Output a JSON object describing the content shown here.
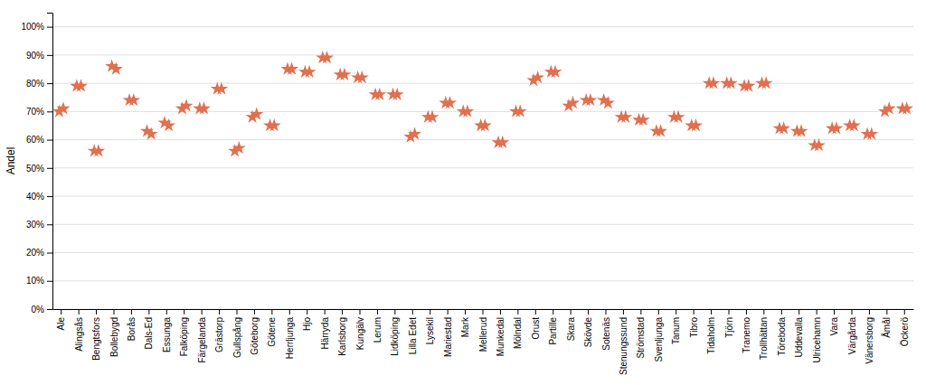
{
  "chart_data": {
    "type": "scatter",
    "ylabel": "Andel",
    "categories": [
      "Ale",
      "Alingsås",
      "Bengtsfors",
      "Bollebygd",
      "Borås",
      "Dals-Ed",
      "Essunga",
      "Falköping",
      "Färgelanda",
      "Grästorp",
      "Gullspång",
      "Göteborg",
      "Götene",
      "Herrljunga",
      "Hjo",
      "Härryda",
      "Karlsborg",
      "Kungälv",
      "Lerum",
      "Lidköping",
      "Lilla Edet",
      "Lysekil",
      "Mariestad",
      "Mark",
      "Mellerud",
      "Munkedal",
      "Mölndal",
      "Orust",
      "Partille",
      "Skara",
      "Skövde",
      "Sotenäs",
      "Stenungssund",
      "Strömstad",
      "Svenljunga",
      "Tanum",
      "Tibro",
      "Tidaholm",
      "Tjörn",
      "Tranemo",
      "Trollhättan",
      "Töreboda",
      "Uddevalla",
      "Ulricehamn",
      "Vara",
      "Värgårda",
      "Vänersborg",
      "Åmål",
      "Öckerö"
    ],
    "series": [
      {
        "color": "#e07050",
        "marker": "star",
        "values": [
          70,
          79,
          56,
          86,
          74,
          63,
          66,
          71,
          71,
          78,
          56,
          68,
          65,
          85,
          84,
          89,
          83,
          82,
          76,
          76,
          61,
          68,
          73,
          70,
          65,
          59,
          70,
          81,
          84,
          72,
          74,
          74,
          68,
          67,
          63,
          68,
          65,
          80,
          80,
          79,
          80,
          64,
          63,
          58,
          64,
          65,
          62,
          70,
          71
        ]
      },
      {
        "color": "#e07050",
        "marker": "star",
        "values": [
          71,
          79,
          56,
          85,
          74,
          62,
          65,
          72,
          71,
          78,
          57,
          69,
          65,
          85,
          84,
          89,
          83,
          82,
          76,
          76,
          62,
          68,
          73,
          70,
          65,
          59,
          70,
          82,
          84,
          73,
          74,
          73,
          68,
          67,
          63,
          68,
          65,
          80,
          80,
          79,
          80,
          64,
          63,
          58,
          64,
          65,
          62,
          71,
          71
        ]
      }
    ],
    "ylim": [
      0,
      105
    ],
    "yticks": [
      {
        "value": 0,
        "label": "0%"
      },
      {
        "value": 10,
        "label": "10%"
      },
      {
        "value": 20,
        "label": "20%"
      },
      {
        "value": 30,
        "label": "30%"
      },
      {
        "value": 40,
        "label": "40%"
      },
      {
        "value": 50,
        "label": "50%"
      },
      {
        "value": 60,
        "label": "60%"
      },
      {
        "value": 70,
        "label": "70%"
      },
      {
        "value": 80,
        "label": "80%"
      },
      {
        "value": 90,
        "label": "90%"
      },
      {
        "value": 100,
        "label": "100%"
      }
    ],
    "grid": true
  }
}
